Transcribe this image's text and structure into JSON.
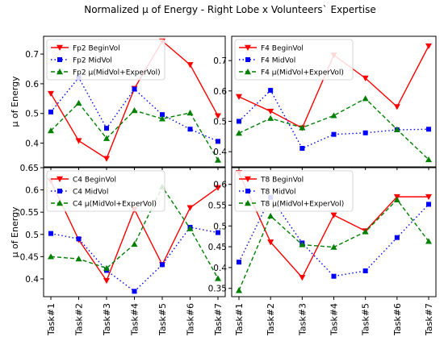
{
  "title": "Normalized μ of Energy - Right Lobe x Volunteers` Expertise",
  "colors": {
    "begin": "#ff0000",
    "mid": "#0000ff",
    "exper": "#008000"
  },
  "chart_data": [
    {
      "type": "line",
      "panel": "Fp2",
      "ylabel": "μ of Energy",
      "xlabel": "",
      "categories": [
        "Task#1",
        "Task#2",
        "Task#3",
        "Task#4",
        "Task#5",
        "Task#6",
        "Task#7"
      ],
      "ylim": [
        0.32,
        0.76
      ],
      "yticks": [
        0.4,
        0.5,
        0.6,
        0.7
      ],
      "legend_position": "top-left",
      "series": [
        {
          "name": "Fp2 BeginVol",
          "style": "begin",
          "values": [
            0.567,
            0.408,
            0.348,
            0.584,
            0.744,
            0.664,
            0.492
          ]
        },
        {
          "name": "Fp2 MidVol",
          "style": "mid",
          "values": [
            0.505,
            0.621,
            0.45,
            0.582,
            0.496,
            0.447,
            0.406
          ]
        },
        {
          "name": "Fp2 μ(MidVol+ExperVol)",
          "style": "exper",
          "values": [
            0.442,
            0.535,
            0.416,
            0.51,
            0.482,
            0.502,
            0.343
          ]
        }
      ]
    },
    {
      "type": "line",
      "panel": "F4",
      "ylabel": "",
      "xlabel": "",
      "categories": [
        "Task#1",
        "Task#2",
        "Task#3",
        "Task#4",
        "Task#5",
        "Task#6",
        "Task#7"
      ],
      "ylim": [
        0.35,
        0.78
      ],
      "yticks": [
        0.4,
        0.5,
        0.6,
        0.7
      ],
      "legend_position": "top-left",
      "series": [
        {
          "name": "F4 BeginVol",
          "style": "begin",
          "values": [
            0.581,
            0.533,
            0.478,
            0.718,
            0.642,
            0.548,
            0.748
          ]
        },
        {
          "name": "F4 MidVol",
          "style": "mid",
          "values": [
            0.5,
            0.602,
            0.411,
            0.457,
            0.462,
            0.472,
            0.474
          ]
        },
        {
          "name": "F4 μ(MidVol+ExperVol)",
          "style": "exper",
          "values": [
            0.461,
            0.51,
            0.479,
            0.519,
            0.575,
            0.473,
            0.374
          ]
        }
      ]
    },
    {
      "type": "line",
      "panel": "C4",
      "ylabel": "μ of Energy",
      "xlabel": "",
      "categories": [
        "Task#1",
        "Task#2",
        "Task#3",
        "Task#4",
        "Task#5",
        "Task#6",
        "Task#7"
      ],
      "ylim": [
        0.36,
        0.65
      ],
      "yticks": [
        0.4,
        0.45,
        0.5,
        0.55,
        0.6,
        0.65
      ],
      "legend_position": "top-left",
      "series": [
        {
          "name": "C4 BeginVol",
          "style": "begin",
          "values": [
            0.62,
            0.488,
            0.396,
            0.556,
            0.432,
            0.56,
            0.605
          ]
        },
        {
          "name": "C4 MidVol",
          "style": "mid",
          "values": [
            0.502,
            0.49,
            0.419,
            0.372,
            0.432,
            0.516,
            0.504
          ]
        },
        {
          "name": "C4 μ(MidVol+ExperVol)",
          "style": "exper",
          "values": [
            0.45,
            0.445,
            0.424,
            0.478,
            0.607,
            0.513,
            0.401
          ]
        }
      ]
    },
    {
      "type": "line",
      "panel": "T8",
      "ylabel": "",
      "xlabel": "",
      "categories": [
        "Task#1",
        "Task#2",
        "Task#3",
        "Task#4",
        "Task#5",
        "Task#6",
        "Task#7"
      ],
      "ylim": [
        0.33,
        0.64
      ],
      "yticks": [
        0.35,
        0.4,
        0.45,
        0.5,
        0.55,
        0.6
      ],
      "legend_position": "top-left",
      "series": [
        {
          "name": "T8 BeginVol",
          "style": "begin",
          "values": [
            0.628,
            0.461,
            0.376,
            0.526,
            0.488,
            0.57,
            0.57
          ]
        },
        {
          "name": "T8 MidVol",
          "style": "mid",
          "values": [
            0.413,
            0.569,
            0.459,
            0.379,
            0.392,
            0.472,
            0.552
          ]
        },
        {
          "name": "T8 μ(MidVol+ExperVol)",
          "style": "exper",
          "values": [
            0.345,
            0.524,
            0.455,
            0.449,
            0.486,
            0.563,
            0.463
          ]
        }
      ]
    }
  ]
}
